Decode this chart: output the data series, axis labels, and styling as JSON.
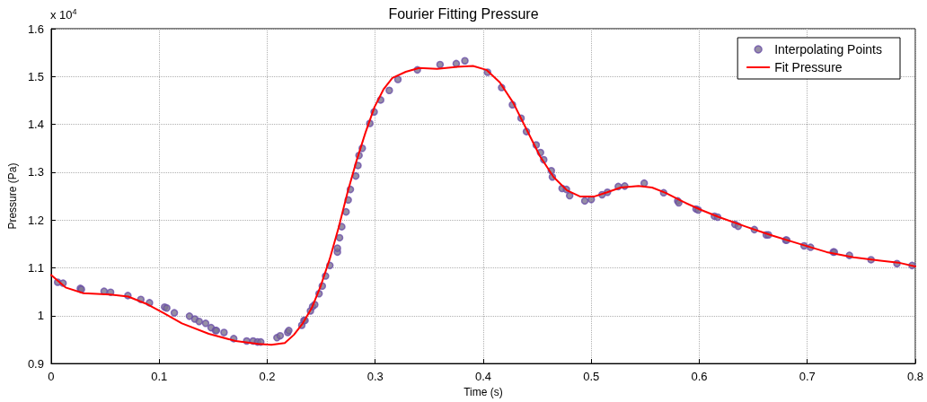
{
  "chart_data": {
    "type": "scatter",
    "title": "Fourier Fitting Pressure",
    "xlabel": "Time (s)",
    "ylabel": "Pressure (Pa)",
    "annotations": [
      "x 10$^{4}$"
    ],
    "xlim": [
      0,
      0.8
    ],
    "xticks": [
      0,
      0.1,
      0.2,
      0.3,
      0.4,
      0.5,
      0.6,
      0.7,
      0.8
    ],
    "ylim": [
      0.9,
      1.6
    ],
    "yticks": [
      0.9,
      1,
      1.1,
      1.2,
      1.3,
      1.4,
      1.5,
      1.6
    ],
    "grid": true,
    "legend": "top right",
    "marker": "circle",
    "series": [
      {
        "name": "Interpolating Points",
        "color": "#6a4fa8",
        "x": [
          0.006,
          0.011,
          0.027,
          0.028,
          0.049,
          0.055,
          0.071,
          0.083,
          0.091,
          0.105,
          0.107,
          0.114,
          0.128,
          0.133,
          0.137,
          0.143,
          0.148,
          0.152,
          0.153,
          0.16,
          0.169,
          0.181,
          0.187,
          0.191,
          0.194,
          0.209,
          0.212,
          0.219,
          0.22,
          0.232,
          0.234,
          0.235,
          0.24,
          0.242,
          0.244,
          0.248,
          0.251,
          0.254,
          0.258,
          0.265,
          0.265,
          0.267,
          0.269,
          0.273,
          0.275,
          0.277,
          0.282,
          0.284,
          0.285,
          0.288,
          0.295,
          0.299,
          0.305,
          0.313,
          0.321,
          0.339,
          0.36,
          0.375,
          0.383,
          0.404,
          0.417,
          0.427,
          0.435,
          0.44,
          0.449,
          0.453,
          0.456,
          0.463,
          0.464,
          0.473,
          0.477,
          0.48,
          0.494,
          0.5,
          0.51,
          0.515,
          0.525,
          0.531,
          0.549,
          0.567,
          0.58,
          0.581,
          0.597,
          0.599,
          0.614,
          0.617,
          0.633,
          0.636,
          0.651,
          0.662,
          0.664,
          0.68,
          0.681,
          0.697,
          0.703,
          0.724,
          0.725,
          0.739,
          0.759,
          0.783,
          0.797
        ],
        "values": [
          1.07,
          1.068,
          1.057,
          1.055,
          1.051,
          1.049,
          1.042,
          1.034,
          1.027,
          1.018,
          1.016,
          1.006,
          0.999,
          0.993,
          0.988,
          0.984,
          0.975,
          0.969,
          0.969,
          0.965,
          0.952,
          0.947,
          0.947,
          0.945,
          0.945,
          0.954,
          0.958,
          0.965,
          0.969,
          0.98,
          0.99,
          0.99,
          1.01,
          1.019,
          1.023,
          1.046,
          1.062,
          1.083,
          1.105,
          1.133,
          1.141,
          1.163,
          1.186,
          1.217,
          1.242,
          1.264,
          1.292,
          1.314,
          1.335,
          1.35,
          1.402,
          1.426,
          1.451,
          1.471,
          1.494,
          1.514,
          1.525,
          1.527,
          1.533,
          1.509,
          1.477,
          1.441,
          1.413,
          1.385,
          1.357,
          1.341,
          1.326,
          1.303,
          1.29,
          1.266,
          1.264,
          1.251,
          1.24,
          1.243,
          1.253,
          1.258,
          1.27,
          1.271,
          1.277,
          1.257,
          1.24,
          1.236,
          1.223,
          1.221,
          1.208,
          1.206,
          1.191,
          1.187,
          1.18,
          1.169,
          1.169,
          1.158,
          1.158,
          1.146,
          1.143,
          1.133,
          1.133,
          1.126,
          1.117,
          1.109,
          1.105
        ]
      },
      {
        "name": "Fit Pressure",
        "type": "line",
        "color": "#ff0000",
        "marker": "none",
        "line_style": "solid",
        "x": [
          0,
          0.0133,
          0.0298,
          0.0547,
          0.0713,
          0.0879,
          0.1045,
          0.121,
          0.1459,
          0.1707,
          0.1915,
          0.2039,
          0.2163,
          0.2247,
          0.2329,
          0.2412,
          0.2495,
          0.2578,
          0.2661,
          0.2744,
          0.2827,
          0.291,
          0.2993,
          0.3076,
          0.3159,
          0.3283,
          0.3407,
          0.3573,
          0.3739,
          0.3905,
          0.4029,
          0.4153,
          0.4278,
          0.4402,
          0.4526,
          0.4651,
          0.4775,
          0.4899,
          0.5024,
          0.5148,
          0.5272,
          0.5438,
          0.5563,
          0.5687,
          0.5852,
          0.6018,
          0.6184,
          0.6433,
          0.6682,
          0.693,
          0.7179,
          0.7428,
          0.7677,
          0.7843,
          0.8
        ],
        "values": [
          1.085,
          1.059,
          1.047,
          1.044,
          1.04,
          1.025,
          1.005,
          0.984,
          0.962,
          0.947,
          0.941,
          0.939,
          0.943,
          0.96,
          0.984,
          1.016,
          1.062,
          1.118,
          1.184,
          1.258,
          1.324,
          1.383,
          1.436,
          1.473,
          1.497,
          1.51,
          1.518,
          1.516,
          1.52,
          1.522,
          1.514,
          1.488,
          1.445,
          1.389,
          1.333,
          1.29,
          1.262,
          1.249,
          1.249,
          1.258,
          1.268,
          1.271,
          1.268,
          1.257,
          1.238,
          1.221,
          1.206,
          1.186,
          1.167,
          1.15,
          1.133,
          1.122,
          1.115,
          1.111,
          1.103
        ]
      }
    ]
  }
}
